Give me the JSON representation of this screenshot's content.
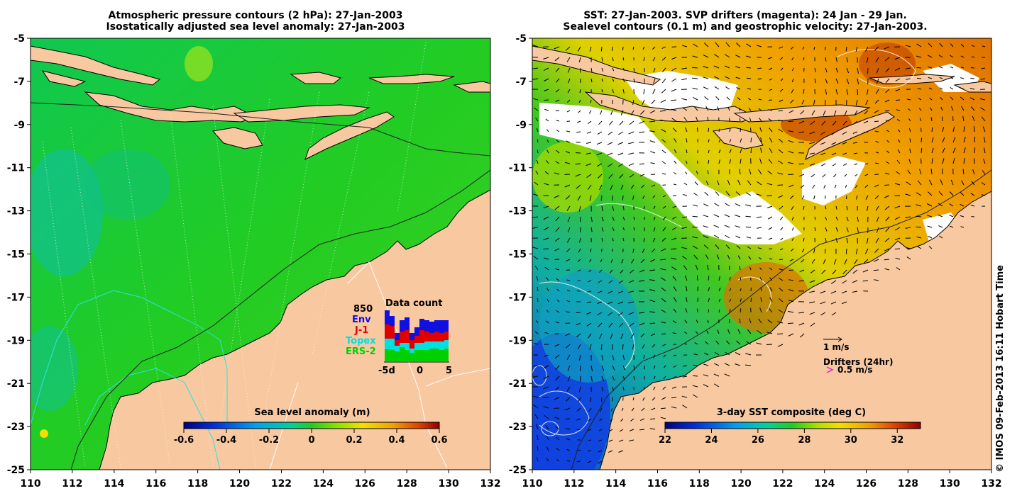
{
  "left_panel": {
    "title_line1": "Atmospheric pressure contours (2 hPa): 27-Jan-2003",
    "title_line2": "Isostatically adjusted sea level anomaly: 27-Jan-2003",
    "y_ticks": [
      "-5",
      "-7",
      "-9",
      "-11",
      "-13",
      "-15",
      "-17",
      "-19",
      "-21",
      "-23",
      "-25"
    ],
    "x_ticks": [
      "110",
      "112",
      "114",
      "116",
      "118",
      "120",
      "122",
      "124",
      "126",
      "128",
      "130",
      "132"
    ],
    "colorbar": {
      "title": "Sea level anomaly (m)",
      "ticks": [
        "-0.6",
        "-0.4",
        "-0.2",
        "0",
        "0.2",
        "0.4",
        "0.6"
      ],
      "range": [
        -0.6,
        0.6
      ]
    },
    "data_count": {
      "title": "Data count",
      "max_label": "850",
      "legend": [
        {
          "label": "Env",
          "color": "#1010e0"
        },
        {
          "label": "J-1",
          "color": "#e00000"
        },
        {
          "label": "Topex",
          "color": "#00e0e0"
        },
        {
          "label": "ERS-2",
          "color": "#00d000"
        }
      ],
      "x_labels": [
        "-5d",
        "0",
        "5"
      ]
    }
  },
  "right_panel": {
    "title_line1": "SST: 27-Jan-2003. SVP drifters (magenta): 24 Jan - 29 Jan.",
    "title_line2": "Sealevel contours (0.1 m) and geostrophic velocity: 27-Jan-2003.",
    "y_ticks": [
      "-5",
      "-7",
      "-9",
      "-11",
      "-13",
      "-15",
      "-17",
      "-19",
      "-21",
      "-23",
      "-25"
    ],
    "x_ticks": [
      "110",
      "112",
      "114",
      "116",
      "118",
      "120",
      "122",
      "124",
      "126",
      "128",
      "130",
      "132"
    ],
    "colorbar": {
      "title": "3-day SST composite (deg C)",
      "ticks": [
        "22",
        "24",
        "26",
        "28",
        "30",
        "32"
      ],
      "range": [
        22,
        33
      ]
    },
    "velocity_legend": "1 m/s",
    "drifters_legend": "Drifters (24hr)",
    "drifters_speed": "0.5 m/s"
  },
  "credit": "© IMOS 09-Feb-2013 16:11 Hobart Time",
  "colors": {
    "land": "#f8c8a0",
    "sea_green": "#22cc22",
    "cloud": "#ffffff"
  }
}
